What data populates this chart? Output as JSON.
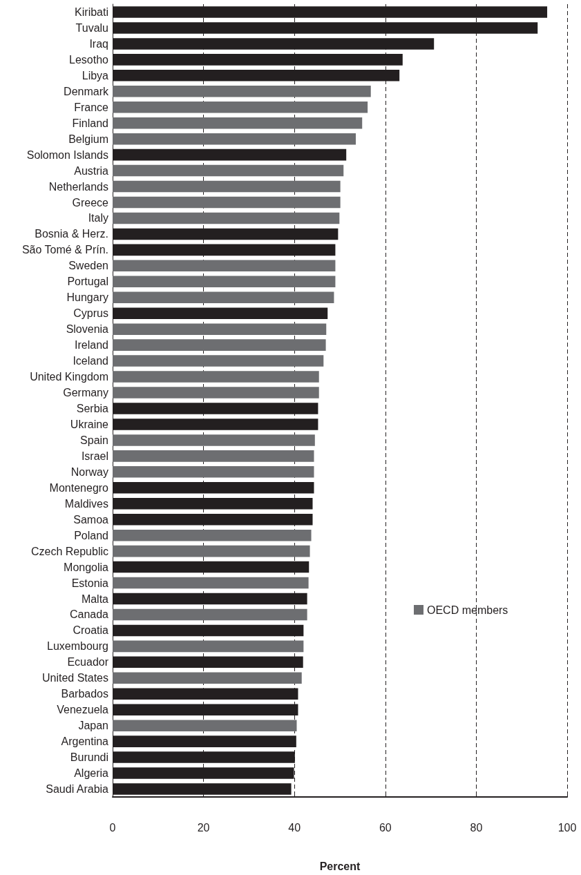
{
  "chart_data": {
    "type": "bar",
    "orientation": "horizontal",
    "xlabel": "Percent",
    "categories": [
      "Kiribati",
      "Tuvalu",
      "Iraq",
      "Lesotho",
      "Libya",
      "Denmark",
      "France",
      "Finland",
      "Belgium",
      "Solomon Islands",
      "Austria",
      "Netherlands",
      "Greece",
      "Italy",
      "Bosnia & Herz.",
      "São Tomé & Prín.",
      "Sweden",
      "Portugal",
      "Hungary",
      "Cyprus",
      "Slovenia",
      "Ireland",
      "Iceland",
      "United Kingdom",
      "Germany",
      "Serbia",
      "Ukraine",
      "Spain",
      "Israel",
      "Norway",
      "Montenegro",
      "Maldives",
      "Samoa",
      "Poland",
      "Czech Republic",
      "Mongolia",
      "Estonia",
      "Malta",
      "Canada",
      "Croatia",
      "Luxembourg",
      "Ecuador",
      "United States",
      "Barbados",
      "Venezuela",
      "Japan",
      "Argentina",
      "Burundi",
      "Algeria",
      "Saudi Arabia"
    ],
    "series": [
      {
        "color": "#231f20",
        "values": [
          95.6,
          93.5,
          70.7,
          63.8,
          63.1,
          null,
          null,
          null,
          null,
          51.4,
          null,
          null,
          null,
          null,
          49.6,
          49.0,
          null,
          null,
          null,
          47.3,
          null,
          null,
          null,
          null,
          null,
          45.2,
          45.2,
          null,
          null,
          null,
          44.3,
          44.0,
          44.0,
          null,
          null,
          43.2,
          null,
          42.8,
          null,
          42.0,
          null,
          41.9,
          null,
          40.8,
          40.8,
          null,
          40.4,
          40.1,
          39.9,
          39.3
        ]
      },
      {
        "name": "OECD members",
        "color": "#6d6e71",
        "values": [
          null,
          null,
          null,
          null,
          null,
          56.8,
          56.1,
          54.9,
          53.5,
          null,
          50.8,
          50.1,
          50.1,
          49.9,
          null,
          null,
          49.0,
          49.0,
          48.7,
          null,
          47.0,
          46.9,
          46.4,
          45.4,
          45.4,
          null,
          null,
          44.5,
          44.3,
          44.3,
          null,
          null,
          null,
          43.7,
          43.4,
          null,
          43.1,
          null,
          42.8,
          null,
          42.0,
          null,
          41.6,
          null,
          null,
          40.5,
          null,
          null,
          null,
          null
        ]
      }
    ],
    "xlim": [
      0,
      100
    ],
    "xticks": [
      0,
      20,
      40,
      60,
      80,
      100
    ],
    "grid": "x",
    "legend": "bottom right"
  }
}
